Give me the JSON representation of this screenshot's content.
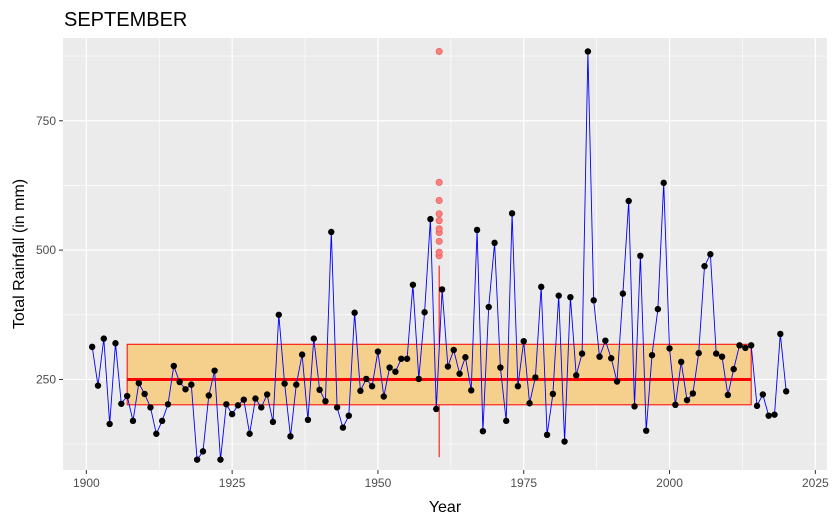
{
  "chart_data": {
    "type": "line",
    "title": "SEPTEMBER",
    "xlabel": "Year",
    "ylabel": "Total Rainfall (in mm)",
    "xlim": [
      1896,
      2027
    ],
    "ylim": [
      75,
      910
    ],
    "x_ticks": [
      1900,
      1925,
      1950,
      1975,
      2000,
      2025
    ],
    "y_ticks": [
      250,
      500,
      750
    ],
    "grid": true,
    "background": "#ebebeb",
    "series": [
      {
        "x": [
          1901,
          1902,
          1903,
          1904,
          1905,
          1906,
          1907,
          1908,
          1909,
          1910,
          1911,
          1912,
          1913,
          1914,
          1915,
          1916,
          1917,
          1918,
          1919,
          1920,
          1921,
          1922,
          1923,
          1924,
          1925,
          1926,
          1927,
          1928,
          1929,
          1930,
          1931,
          1932,
          1933,
          1934,
          1935,
          1936,
          1937,
          1938,
          1939,
          1940,
          1941,
          1942,
          1943,
          1944,
          1945,
          1946,
          1947,
          1948,
          1949,
          1950,
          1951,
          1952,
          1953,
          1954,
          1955,
          1956,
          1957,
          1958,
          1959,
          1960,
          1961,
          1962,
          1963,
          1964,
          1965,
          1966,
          1967,
          1968,
          1969,
          1970,
          1971,
          1972,
          1973,
          1974,
          1975,
          1976,
          1977,
          1978,
          1979,
          1980,
          1981,
          1982,
          1983,
          1984,
          1985,
          1986,
          1987,
          1988,
          1989,
          1990,
          1991,
          1992,
          1993,
          1994,
          1995,
          1996,
          1997,
          1998,
          1999,
          2000,
          2001,
          2002,
          2003,
          2004,
          2005,
          2006,
          2007,
          2008,
          2009,
          2010,
          2011,
          2012,
          2013,
          2014,
          2015,
          2016,
          2017,
          2018,
          2019,
          2020
        ],
        "values": [
          313,
          238,
          329,
          164,
          320,
          203,
          218,
          170,
          243,
          222,
          196,
          145,
          170,
          202,
          276,
          245,
          231,
          240,
          95,
          111,
          219,
          267,
          95,
          202,
          183,
          200,
          211,
          145,
          213,
          196,
          221,
          168,
          375,
          242,
          140,
          240,
          298,
          172,
          329,
          230,
          208,
          535,
          196,
          157,
          180,
          379,
          228,
          251,
          237,
          304,
          217,
          273,
          265,
          290,
          290,
          433,
          251,
          380,
          560,
          193,
          424,
          275,
          307,
          261,
          293,
          229,
          539,
          150,
          390,
          514,
          273,
          170,
          571,
          237,
          324,
          204,
          254,
          429,
          143,
          222,
          412,
          130,
          409,
          258,
          300,
          884,
          403,
          294,
          325,
          291,
          246,
          416,
          595,
          198,
          489,
          151,
          297,
          386,
          630,
          310,
          201,
          284,
          210,
          223,
          301,
          469,
          492,
          300,
          294,
          220,
          270,
          316,
          311,
          316,
          199,
          221,
          180,
          182,
          338,
          227
        ],
        "line_color": "#0000ff",
        "point_color": "#000000"
      }
    ],
    "box": {
      "x_range": [
        1907,
        2014
      ],
      "q1": 201,
      "median": 250,
      "q3": 318,
      "whisker_x": 1960.5,
      "whisker_range": [
        100,
        470
      ],
      "outliers": [
        489,
        496,
        517,
        534,
        541,
        557,
        570,
        596,
        631,
        884
      ],
      "fill": "#f5d08c",
      "border": "#ff0000",
      "median_color": "#ff0000",
      "outlier_color": "#ff7f7f"
    }
  }
}
